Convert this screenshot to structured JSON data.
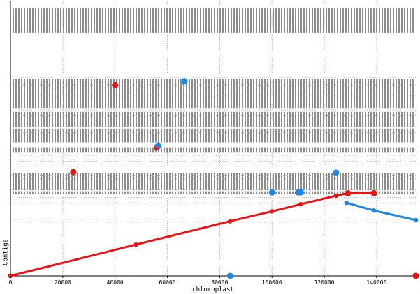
{
  "chart_data": {
    "type": "scatter",
    "xlabel": "chloroplast",
    "ylabel": "Contigs",
    "xlim": [
      0,
      155000
    ],
    "ylim": [
      0,
      100
    ],
    "x_ticks": [
      0,
      20000,
      40000,
      60000,
      80000,
      100000,
      120000,
      140000
    ],
    "grid": true,
    "colors": {
      "forward": "#ee1111",
      "reverse": "#1a88e8",
      "stripes": "#8c8c8c",
      "grid": "#b4b4b4"
    },
    "contig_boundaries": [
      72.3,
      69.5,
      65.8,
      60.4,
      58.5,
      54.2,
      52.1,
      45.8,
      43.9,
      41.7,
      39.7,
      36.7,
      35.3,
      31.4,
      28.5,
      26.6,
      19.6
    ],
    "stripe_bands": [
      [
        88.6,
        97.6
      ],
      [
        61.1,
        71.8
      ],
      [
        54.2,
        59.7
      ],
      [
        48.6,
        53.6
      ],
      [
        45.1,
        46.8
      ],
      [
        31.2,
        37.4
      ],
      [
        29.9,
        30.8
      ]
    ],
    "series": [
      {
        "orientation": "forward",
        "connected": [
          [
            0,
            0
          ],
          [
            48000,
            11.4
          ],
          [
            84000,
            19.9
          ],
          [
            100000,
            23.5
          ],
          [
            111000,
            26.1
          ],
          [
            124500,
            29.2
          ],
          [
            129000,
            30.1
          ],
          [
            139000,
            30.1
          ]
        ],
        "points": [
          [
            40000,
            69.5
          ],
          [
            56000,
            46.8
          ],
          [
            24000,
            37.8
          ],
          [
            129000,
            30.1
          ],
          [
            139000,
            30.1
          ],
          [
            155000,
            0
          ]
        ]
      },
      {
        "orientation": "reverse",
        "connected": [
          [
            128500,
            26.6
          ],
          [
            139000,
            23.8
          ],
          [
            155000,
            20.3
          ]
        ],
        "points": [
          [
            66500,
            70.9
          ],
          [
            56500,
            47.5
          ],
          [
            124500,
            37.6
          ],
          [
            100000,
            30.4
          ],
          [
            110000,
            30.4
          ],
          [
            111000,
            30.4
          ],
          [
            84000,
            0
          ]
        ]
      }
    ]
  }
}
